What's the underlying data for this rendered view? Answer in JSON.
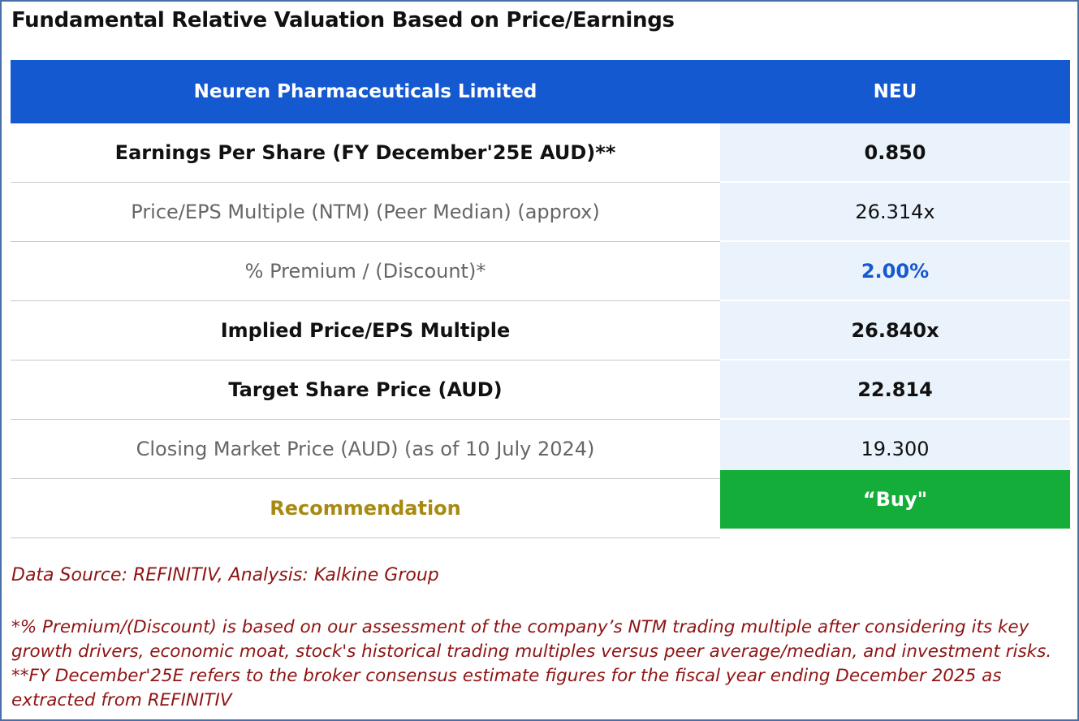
{
  "title": "Fundamental Relative Valuation Based on Price/Earnings",
  "header": {
    "company": "Neuren Pharmaceuticals Limited",
    "ticker": "NEU"
  },
  "rows": [
    {
      "label": "Earnings Per Share (FY December'25E AUD)**",
      "value": "0.850"
    },
    {
      "label": "Price/EPS Multiple (NTM) (Peer Median) (approx)",
      "value": "26.314x"
    },
    {
      "label": "% Premium / (Discount)*",
      "value": "2.00%"
    },
    {
      "label": "Implied Price/EPS Multiple",
      "value": "26.840x"
    },
    {
      "label": "Target Share Price (AUD)",
      "value": "22.814"
    },
    {
      "label": "Closing Market Price (AUD) (as of 10 July 2024)",
      "value": "19.300"
    }
  ],
  "recommendation": {
    "label": "Recommendation",
    "value": "“Buy\""
  },
  "footer": {
    "source": "Data Source: REFINITIV, Analysis: Kalkine Group",
    "note": "*% Premium/(Discount) is based on our assessment of the company’s NTM trading multiple after considering its key growth drivers, economic moat, stock's historical trading multiples versus peer average/median, and investment risks. **FY December'25E refers to the broker consensus estimate figures for the fiscal year ending December 2025 as extracted from REFINITIV"
  },
  "colors": {
    "header_blue": "#1559d1",
    "buy_green": "#14ad3a",
    "value_cell_bg": "#eaf3fb",
    "footnote_red": "#8f1414",
    "recommendation_gold": "#a88a12"
  }
}
